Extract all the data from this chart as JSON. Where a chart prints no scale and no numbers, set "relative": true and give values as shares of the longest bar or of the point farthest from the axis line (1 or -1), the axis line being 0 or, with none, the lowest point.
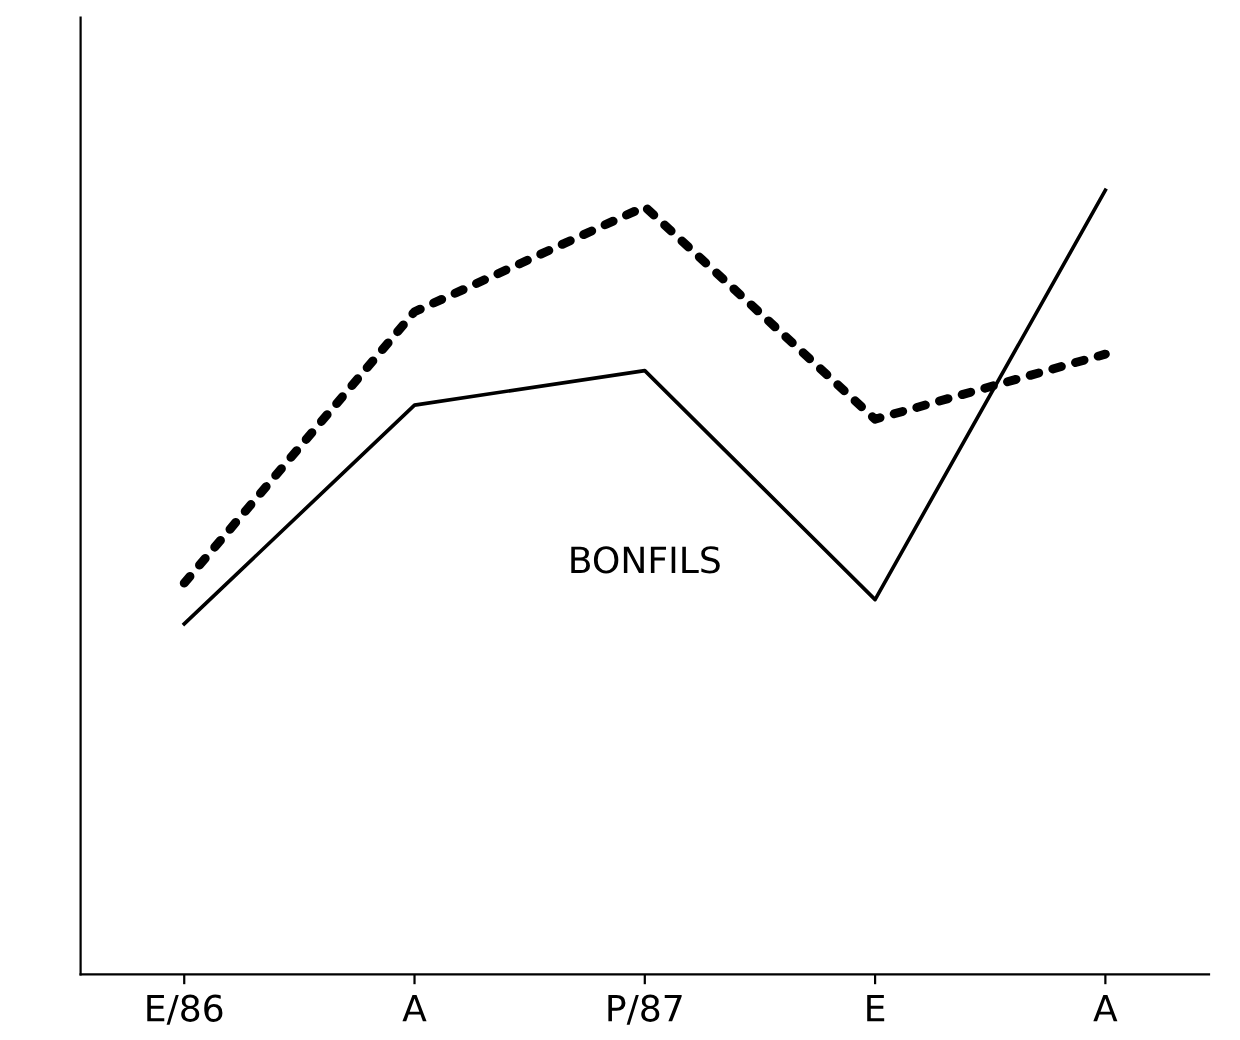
{
  "chart_data": {
    "type": "line",
    "relative": true,
    "categories": [
      "E/86",
      "A",
      "P/87",
      "E",
      "A"
    ],
    "series": [
      {
        "color": "#000000",
        "line_style": "solid",
        "values": [
          0.447,
          0.726,
          0.77,
          0.478,
          1.0
        ]
      },
      {
        "color": "#000000",
        "line_style": "dotted",
        "values": [
          0.499,
          0.845,
          0.979,
          0.708,
          0.791
        ]
      }
    ],
    "annotations": [
      "BONFILS"
    ],
    "grid": false,
    "legend": false
  }
}
